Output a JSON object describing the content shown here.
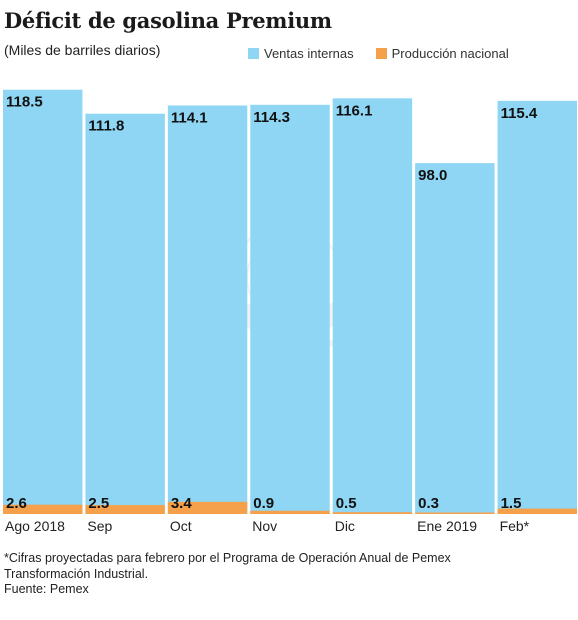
{
  "title": "Déficit de gasolina Premium",
  "subtitle": "(Miles de barriles diarios)",
  "colors": {
    "ventas": "#8ed6f4",
    "produccion": "#f5a04a"
  },
  "legend": {
    "ventas_label": "Ventas internas",
    "produccion_label": "Producción nacional"
  },
  "chart_data": {
    "type": "bar",
    "categories": [
      "Ago 2018",
      "Sep",
      "Oct",
      "Nov",
      "Dic",
      "Ene 2019",
      "Feb*"
    ],
    "series": [
      {
        "name": "Ventas internas",
        "values": [
          118.5,
          111.8,
          114.1,
          114.3,
          116.1,
          98.0,
          115.4
        ]
      },
      {
        "name": "Producción nacional",
        "values": [
          2.6,
          2.5,
          3.4,
          0.9,
          0.5,
          0.3,
          1.5
        ]
      }
    ],
    "value_labels_ventas": [
      "118.5",
      "111.8",
      "114.1",
      "114.3",
      "116.1",
      "98.0",
      "115.4"
    ],
    "value_labels_produccion": [
      "2.6",
      "2.5",
      "3.4",
      "0.9",
      "0.5",
      "0.3",
      "1.5"
    ],
    "ylim": [
      0,
      121.5
    ],
    "grid": false,
    "legend_position": "top-right"
  },
  "footnote": {
    "line1": "*Cifras proyectadas para febrero por el Programa de Operación Anual de Pemex",
    "line2": "Transformación Industrial.",
    "source": "Fuente: Pemex"
  }
}
